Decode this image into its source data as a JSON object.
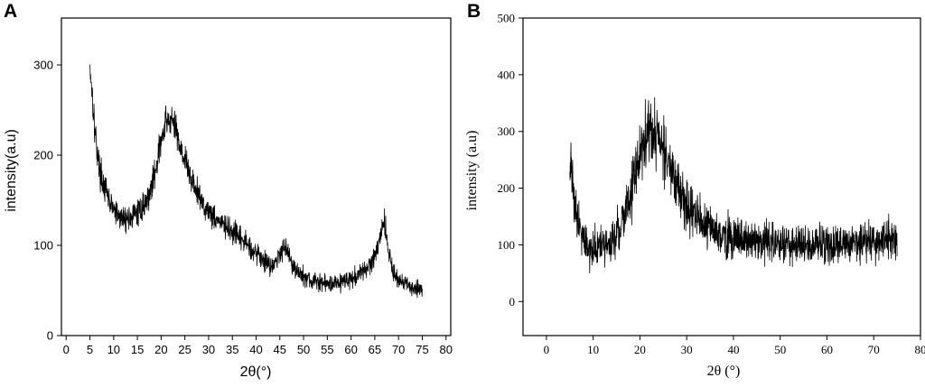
{
  "chart_data": [
    {
      "panel": "A",
      "type": "line",
      "title": "",
      "xlabel": "2θ(°)",
      "ylabel": "intensity(a.u)",
      "xlim": [
        -1,
        81
      ],
      "ylim": [
        0,
        352
      ],
      "xticks": [
        0,
        5,
        10,
        15,
        20,
        25,
        30,
        35,
        40,
        45,
        50,
        55,
        60,
        65,
        70,
        75,
        80
      ],
      "yticks": [
        0,
        100,
        200,
        300
      ],
      "grid": false,
      "noise_amplitude": 12,
      "series": [
        {
          "x": [
            5,
            5.5,
            6,
            7,
            8,
            9,
            10,
            11,
            12,
            13,
            14,
            15,
            16,
            17,
            18,
            19,
            20,
            21,
            22,
            23,
            24,
            25,
            26,
            27,
            28,
            29,
            30,
            32,
            34,
            36,
            38,
            40,
            42,
            43,
            44,
            45,
            46,
            47,
            48,
            50,
            52,
            54,
            56,
            58,
            60,
            62,
            64,
            65,
            66,
            67,
            68,
            69,
            70,
            72,
            74,
            75
          ],
          "y": [
            300,
            270,
            230,
            185,
            165,
            150,
            140,
            132,
            130,
            130,
            132,
            136,
            142,
            150,
            165,
            190,
            215,
            235,
            240,
            230,
            212,
            195,
            178,
            165,
            155,
            145,
            138,
            128,
            118,
            110,
            102,
            92,
            82,
            78,
            80,
            90,
            102,
            88,
            75,
            65,
            60,
            58,
            58,
            60,
            63,
            68,
            78,
            90,
            108,
            128,
            90,
            70,
            60,
            55,
            52,
            52
          ]
        }
      ]
    },
    {
      "panel": "B",
      "type": "line",
      "title": "",
      "xlabel": "2θ (°)",
      "ylabel": "intensity (a.u)",
      "xlim": [
        -5,
        80
      ],
      "ylim": [
        -60,
        500
      ],
      "xticks": [
        0,
        10,
        20,
        30,
        40,
        50,
        60,
        70,
        80
      ],
      "yticks": [
        0,
        100,
        200,
        300,
        400,
        500
      ],
      "grid": false,
      "noise_amplitude": 40,
      "series": [
        {
          "x": [
            5,
            5.5,
            6,
            7,
            8,
            9,
            10,
            11,
            12,
            13,
            14,
            15,
            16,
            17,
            18,
            19,
            20,
            21,
            22,
            23,
            24,
            25,
            26,
            27,
            28,
            29,
            30,
            32,
            34,
            36,
            38,
            40,
            45,
            50,
            55,
            60,
            65,
            70,
            75
          ],
          "y": [
            260,
            220,
            180,
            140,
            110,
            95,
            90,
            92,
            96,
            100,
            108,
            118,
            135,
            160,
            190,
            225,
            260,
            290,
            300,
            300,
            290,
            270,
            245,
            220,
            200,
            185,
            170,
            150,
            135,
            125,
            118,
            112,
            105,
            102,
            100,
            100,
            104,
            108,
            110
          ]
        }
      ]
    }
  ],
  "panels": {
    "a": {
      "letter": "A",
      "xlabel": "2θ(°)",
      "ylabel": "intensity(a.u)",
      "xtick_labels": [
        "0",
        "5",
        "10",
        "15",
        "20",
        "25",
        "30",
        "35",
        "40",
        "45",
        "50",
        "55",
        "60",
        "65",
        "70",
        "75",
        "80"
      ],
      "ytick_labels": [
        "0",
        "100",
        "200",
        "300"
      ]
    },
    "b": {
      "letter": "B",
      "xlabel": "2θ (°)",
      "ylabel": "intensity (a.u)",
      "xtick_labels": [
        "0",
        "10",
        "20",
        "30",
        "40",
        "50",
        "60",
        "70",
        "80"
      ],
      "ytick_labels": [
        "0",
        "100",
        "200",
        "300",
        "400",
        "500"
      ]
    }
  }
}
